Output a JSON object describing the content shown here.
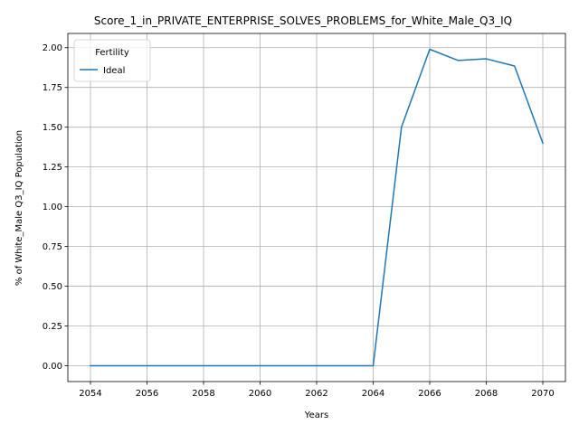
{
  "chart_data": {
    "type": "line",
    "title": "Score_1_in_PRIVATE_ENTERPRISE_SOLVES_PROBLEMS_for_White_Male_Q3_IQ",
    "xlabel": "Years",
    "ylabel": "% of White_Male Q3_IQ Population",
    "x": [
      2054,
      2055,
      2056,
      2057,
      2058,
      2059,
      2060,
      2061,
      2062,
      2063,
      2064,
      2065,
      2066,
      2067,
      2068,
      2069,
      2070
    ],
    "series": [
      {
        "name": "Ideal",
        "color": "#1f77b4",
        "values": [
          0,
          0,
          0,
          0,
          0,
          0,
          0,
          0,
          0,
          0,
          0,
          1.5,
          1.99,
          1.92,
          1.93,
          1.885,
          1.4
        ]
      }
    ],
    "xlim": [
      2053.2,
      2070.8
    ],
    "ylim": [
      -0.0995,
      2.0895
    ],
    "xticks": [
      "2054",
      "2056",
      "2058",
      "2060",
      "2062",
      "2064",
      "2066",
      "2068",
      "2070"
    ],
    "yticks": [
      "0.00",
      "0.25",
      "0.50",
      "0.75",
      "1.00",
      "1.25",
      "1.50",
      "1.75",
      "2.00"
    ],
    "grid": true,
    "legend": {
      "title": "Fertility",
      "placement": "upper-left"
    }
  }
}
